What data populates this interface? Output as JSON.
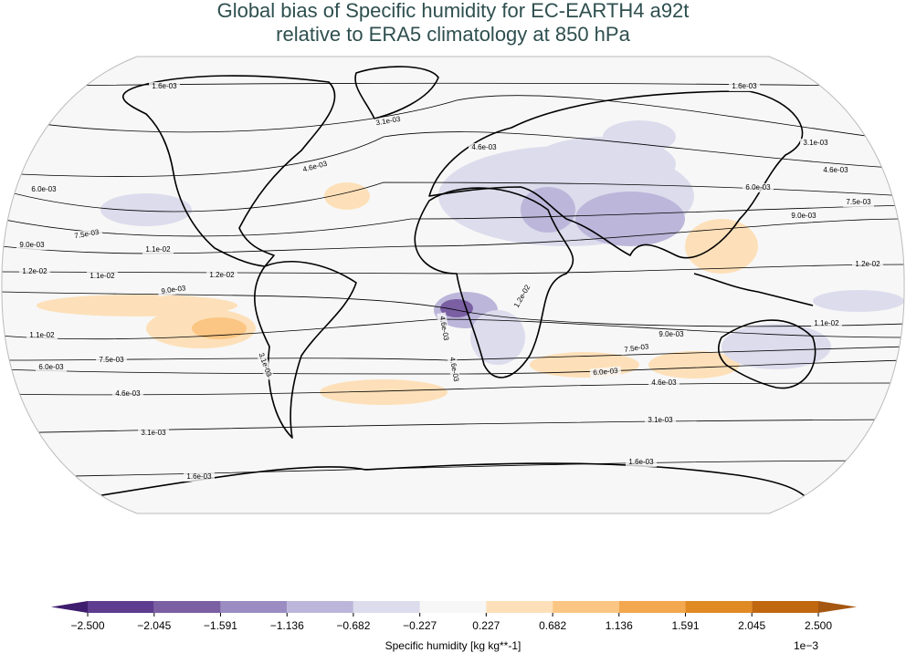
{
  "title_lines": [
    "Global bias of Specific humidity for EC-EARTH4 a92t",
    "relative to ERA5 climatology at 850 hPa"
  ],
  "contour_labels": [
    "1.6e-03",
    "1.6e-03",
    "3.1e-03",
    "3.1e-03",
    "4.6e-03",
    "4.6e-03",
    "4.6e-03",
    "6.0e-03",
    "6.0e-03",
    "7.5e-03",
    "7.5e-03",
    "9.0e-03",
    "9.0e-03",
    "1.1e-02",
    "1.2e-02",
    "1.1e-02",
    "1.2e-02",
    "9.0e-03",
    "1.2e-02",
    "1.1e-02",
    "1.1e-02",
    "9.0e-03",
    "7.5e-03",
    "7.5e-03",
    "6.0e-03",
    "6.0e-03",
    "4.6e-03",
    "4.6e-03",
    "3.1e-03",
    "3.1e-03",
    "3.1e-03",
    "1.6e-03",
    "1.6e-03",
    "4.6e-03",
    "4.6e-03",
    "1.2e-02"
  ],
  "colorbar": {
    "lim": [
      -2.5,
      2.5
    ],
    "ticks": [
      {
        "value": -2.5,
        "label": "−2.500"
      },
      {
        "value": -2.045,
        "label": "−2.045"
      },
      {
        "value": -1.591,
        "label": "−1.591"
      },
      {
        "value": -1.136,
        "label": "−1.136"
      },
      {
        "value": -0.682,
        "label": "−0.682"
      },
      {
        "value": -0.227,
        "label": "−0.227"
      },
      {
        "value": 0.227,
        "label": "0.227"
      },
      {
        "value": 0.682,
        "label": "0.682"
      },
      {
        "value": 1.136,
        "label": "1.136"
      },
      {
        "value": 1.591,
        "label": "1.591"
      },
      {
        "value": 2.045,
        "label": "2.045"
      },
      {
        "value": 2.5,
        "label": "2.500"
      }
    ],
    "colors": [
      "#5e3c8f",
      "#7a5fa3",
      "#9b8dc2",
      "#bcb6da",
      "#dcdced",
      "#f7f7f7",
      "#fde0b9",
      "#fbc683",
      "#f3a74e",
      "#e08a24",
      "#c06710"
    ],
    "extend_colors": [
      "#3f1d6e",
      "#a55610"
    ],
    "label": "Specific humidity [kg kg**-1]",
    "offset_label": "1e−3"
  }
}
